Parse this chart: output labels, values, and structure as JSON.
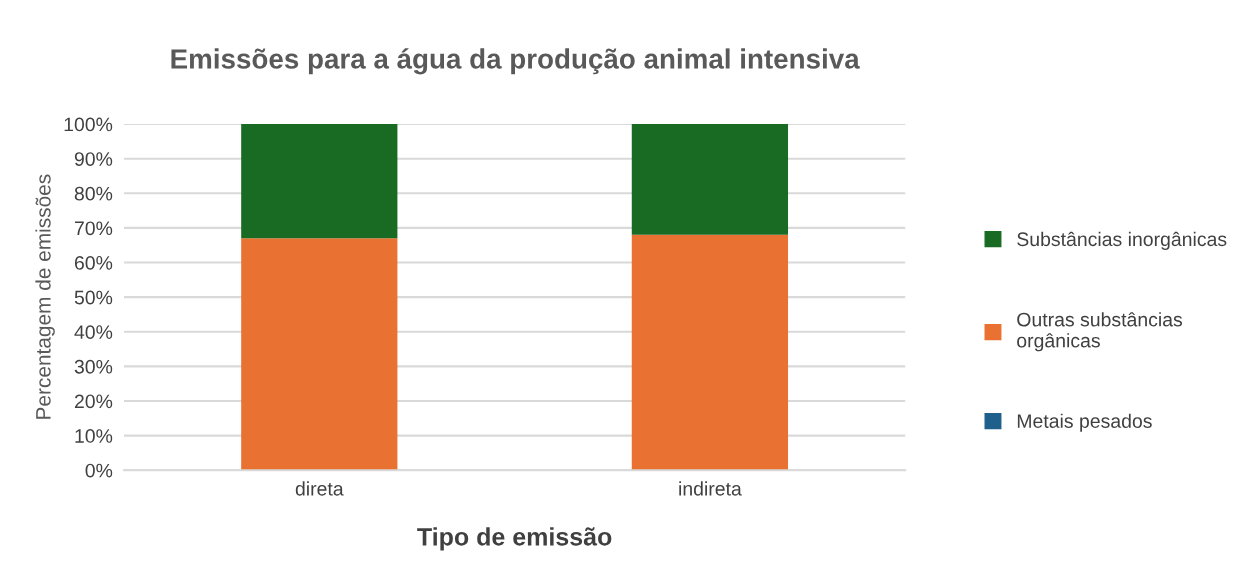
{
  "chart_data": {
    "type": "bar",
    "title": "Emissões para a água da produção animal intensiva",
    "xlabel": "Tipo de emissão",
    "ylabel": "Percentagem de emissões",
    "categories": [
      "direta",
      "indireta"
    ],
    "stacked": true,
    "series": [
      {
        "name": "Metais pesados",
        "color": "#1f5f8b",
        "values": [
          0,
          0
        ]
      },
      {
        "name": "Outras substâncias orgânicas",
        "color": "#e97132",
        "values": [
          67,
          68
        ]
      },
      {
        "name": "Substâncias inorgânicas",
        "color": "#196b24",
        "values": [
          33,
          32
        ]
      }
    ],
    "ylim": [
      0,
      100
    ],
    "yticks": [
      {
        "value": 0,
        "label": "0%"
      },
      {
        "value": 10,
        "label": "10%"
      },
      {
        "value": 20,
        "label": "20%"
      },
      {
        "value": 30,
        "label": "30%"
      },
      {
        "value": 40,
        "label": "40%"
      },
      {
        "value": 50,
        "label": "50%"
      },
      {
        "value": 60,
        "label": "60%"
      },
      {
        "value": 70,
        "label": "70%"
      },
      {
        "value": 80,
        "label": "80%"
      },
      {
        "value": 90,
        "label": "90%"
      },
      {
        "value": 100,
        "label": "100%"
      }
    ],
    "grid": "y",
    "legend": "right"
  }
}
